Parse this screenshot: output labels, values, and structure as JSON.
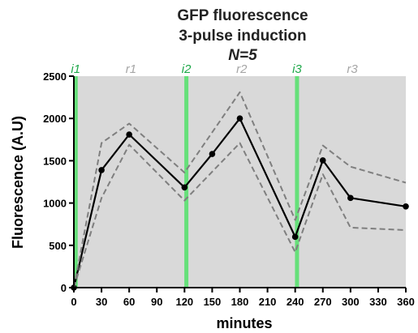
{
  "chart_data": {
    "type": "line",
    "title": [
      "GFP fluorescence",
      "3-pulse induction",
      "N=5"
    ],
    "xlabel": "minutes",
    "ylabel": "Fluorescence  (A.U)",
    "xlim": [
      0,
      360
    ],
    "ylim": [
      0,
      2500
    ],
    "x_ticks": [
      0,
      30,
      60,
      90,
      120,
      150,
      180,
      210,
      240,
      270,
      300,
      330,
      360
    ],
    "y_ticks": [
      0,
      500,
      1000,
      1500,
      2000,
      2500
    ],
    "background_color": "#d9d9d9",
    "grid": false,
    "series": [
      {
        "style": "solid",
        "color": "#000000",
        "markers": true,
        "x": [
          0,
          30,
          60,
          120,
          150,
          180,
          240,
          270,
          300,
          360
        ],
        "y": [
          0,
          1390,
          1810,
          1185,
          1580,
          2000,
          600,
          1505,
          1060,
          960
        ]
      },
      {
        "style": "dashed",
        "color": "#7f7f7f",
        "markers": false,
        "x": [
          0,
          30,
          60,
          120,
          180,
          240,
          270,
          300,
          360
        ],
        "y": [
          0,
          1710,
          1940,
          1360,
          2310,
          800,
          1680,
          1430,
          1240
        ]
      },
      {
        "style": "dashed",
        "color": "#7f7f7f",
        "markers": false,
        "x": [
          0,
          30,
          60,
          120,
          180,
          240,
          270,
          300,
          360
        ],
        "y": [
          0,
          1060,
          1690,
          1030,
          1710,
          420,
          1340,
          710,
          680
        ]
      }
    ],
    "vertical_markers": [
      {
        "label": "i1",
        "x": 2,
        "color": "#66e07a"
      },
      {
        "label": "i2",
        "x": 122,
        "color": "#66e07a"
      },
      {
        "label": "i3",
        "x": 242,
        "color": "#66e07a"
      }
    ],
    "phase_labels": [
      {
        "label": "r1",
        "x": 62,
        "color": "#a6a6a6"
      },
      {
        "label": "r2",
        "x": 182,
        "color": "#a6a6a6"
      },
      {
        "label": "r3",
        "x": 302,
        "color": "#a6a6a6"
      }
    ],
    "marker_label_color": "#1fa84a"
  }
}
